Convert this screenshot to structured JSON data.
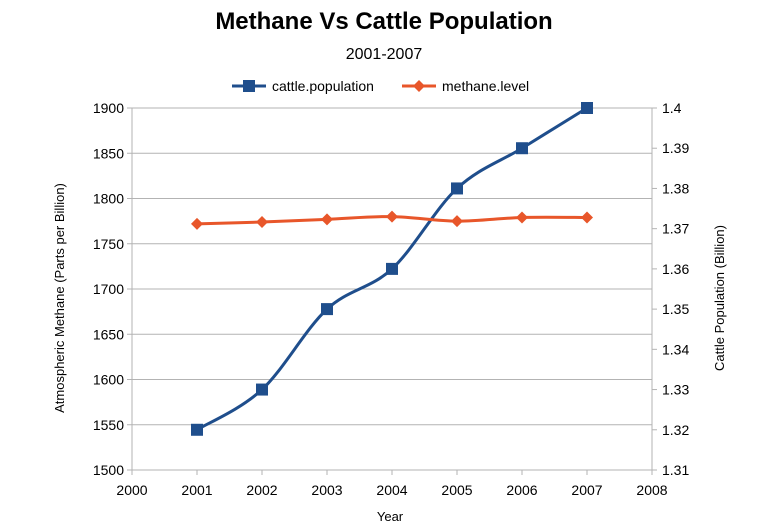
{
  "chart_data": {
    "type": "line",
    "title": "Methane Vs Cattle Population",
    "subtitle": "2001-2007",
    "xlabel": "Year",
    "ylabel_left": "Atmospheric Methane (Parts per Billion)",
    "ylabel_right": "Cattle Population (Billion)",
    "x": [
      2001,
      2002,
      2003,
      2004,
      2005,
      2006,
      2007
    ],
    "xlim": [
      2000,
      2008
    ],
    "x_ticks": [
      "2000",
      "2001",
      "2002",
      "2003",
      "2004",
      "2005",
      "2006",
      "2007",
      "2008"
    ],
    "ylim_left": [
      1500,
      1900
    ],
    "y_ticks_left": [
      "1500",
      "1550",
      "1600",
      "1650",
      "1700",
      "1750",
      "1800",
      "1850",
      "1900"
    ],
    "ylim_right": [
      1.31,
      1.4
    ],
    "y_ticks_right": [
      "1.31",
      "1.32",
      "1.33",
      "1.34",
      "1.35",
      "1.36",
      "1.37",
      "1.38",
      "1.39",
      "1.4"
    ],
    "grid": "horizontal",
    "legend_position": "top",
    "series": [
      {
        "name": "cattle.population",
        "axis": "right",
        "color": "#1f4e8c",
        "marker": "square",
        "values": [
          1.32,
          1.33,
          1.35,
          1.36,
          1.38,
          1.39,
          1.4
        ]
      },
      {
        "name": "methane.level",
        "axis": "left",
        "color": "#e8562a",
        "marker": "diamond",
        "values": [
          1772,
          1774,
          1777,
          1780,
          1775,
          1779,
          1779
        ]
      }
    ]
  }
}
